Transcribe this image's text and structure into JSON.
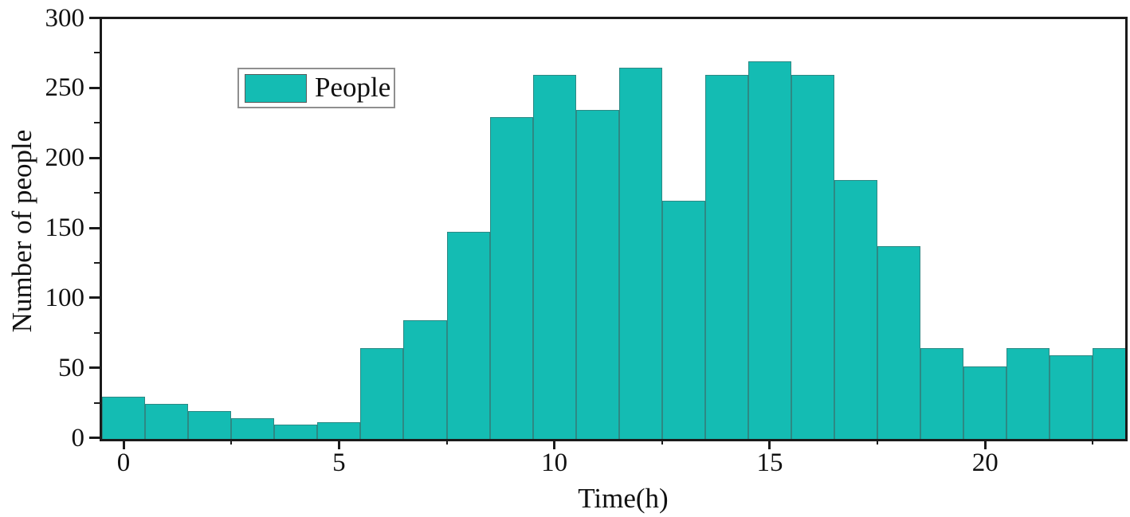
{
  "figure": {
    "background": "#ffffff",
    "axis_color": "#1b1b1b",
    "text_color": "#111111",
    "bar_color": "#14bcb3",
    "bar_edge_color": "rgba(75,75,75,0.45)"
  },
  "chart_data": {
    "type": "bar",
    "title": "",
    "xlabel": "Time(h)",
    "ylabel": "Number of people",
    "categories": [
      0,
      1,
      2,
      3,
      4,
      5,
      6,
      7,
      8,
      9,
      10,
      11,
      12,
      13,
      14,
      15,
      16,
      17,
      18,
      19,
      20,
      21,
      22,
      23
    ],
    "values": [
      30,
      25,
      20,
      15,
      10,
      12,
      65,
      85,
      148,
      230,
      260,
      235,
      265,
      170,
      260,
      270,
      260,
      185,
      138,
      65,
      52,
      65,
      60,
      65
    ],
    "series_name": "People",
    "xlim": [
      -0.5,
      23.25
    ],
    "ylim": [
      0,
      300
    ],
    "x_major_ticks": [
      0,
      5,
      10,
      15,
      20
    ],
    "x_minor_ticks": [
      2.5,
      7.5,
      12.5,
      17.5,
      22.5
    ],
    "y_major_ticks": [
      0,
      50,
      100,
      150,
      200,
      250,
      300
    ],
    "y_minor_ticks": [
      25,
      75,
      125,
      175,
      225,
      275
    ],
    "grid": false,
    "legend": {
      "position": "upper-left",
      "entries": [
        {
          "label": "People",
          "color": "#14bcb3"
        }
      ]
    }
  }
}
